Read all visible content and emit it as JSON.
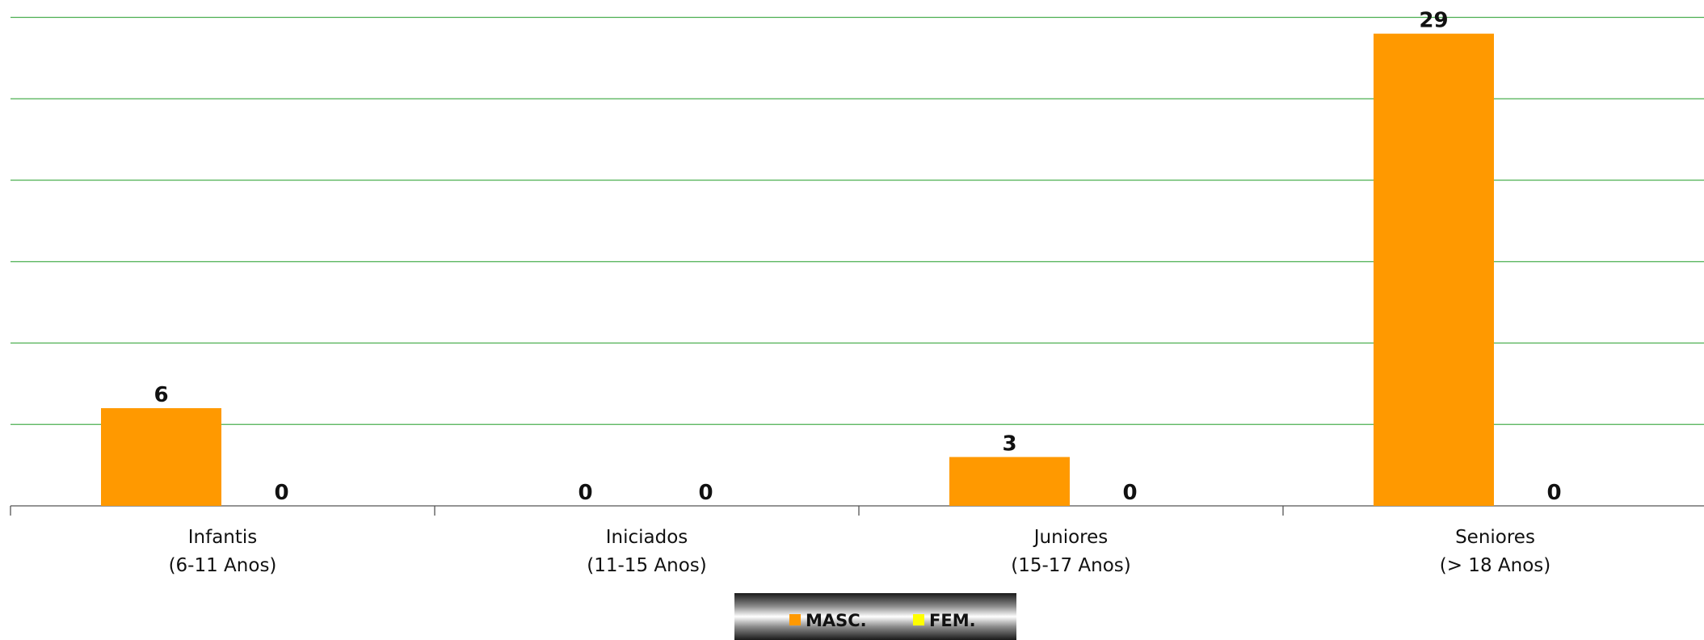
{
  "chart_data": {
    "type": "bar",
    "categories": [
      [
        "Infantis",
        "(6-11 Anos)"
      ],
      [
        "Iniciados",
        "(11-15 Anos)"
      ],
      [
        "Juniores",
        "(15-17 Anos)"
      ],
      [
        "Seniores",
        "(> 18 Anos)"
      ]
    ],
    "series": [
      {
        "name": "MASC.",
        "values": [
          6,
          0,
          3,
          29
        ],
        "color": "#ff9900"
      },
      {
        "name": "FEM.",
        "values": [
          0,
          0,
          0,
          0
        ],
        "color": "#ffff00"
      }
    ],
    "ylim": [
      0,
      30
    ],
    "y_gridline_step": 5,
    "grid": true,
    "gridline_color": "#4caf50",
    "show_data_labels": true,
    "legend_position": "bottom"
  }
}
